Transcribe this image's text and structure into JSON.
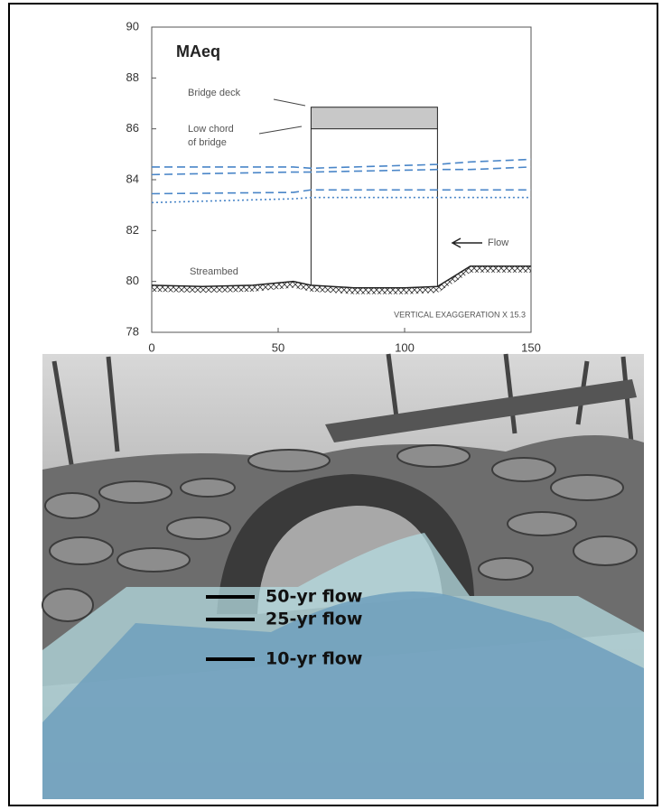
{
  "chart_data": {
    "type": "line",
    "title": "MAeq",
    "annotations": {
      "bridge_deck": "Bridge deck",
      "low_chord": [
        "Low chord",
        "of bridge"
      ],
      "flow": "Flow",
      "streambed": "Streambed",
      "exaggeration": "VERTICAL EXAGGERATION X 15.3"
    },
    "xlim": [
      0,
      150
    ],
    "xticks": [
      0,
      50,
      100,
      150
    ],
    "ylim": [
      78,
      90
    ],
    "yticks": [
      78,
      80,
      82,
      84,
      86,
      88,
      90
    ],
    "bridge": {
      "x": [
        63,
        113
      ],
      "low_chord": 86,
      "deck_top": 86.85,
      "color": "#c8c8c8"
    },
    "streambed": {
      "color": "#222",
      "x": [
        0,
        20,
        40,
        56,
        63,
        80,
        100,
        113,
        126,
        150
      ],
      "values": [
        79.85,
        79.8,
        79.85,
        80.0,
        79.85,
        79.75,
        79.75,
        79.8,
        80.6,
        80.6
      ]
    },
    "series": [
      {
        "color": "#4a86c8",
        "style": "dashed",
        "x": [
          0,
          56,
          63,
          113,
          126,
          150
        ],
        "values": [
          84.5,
          84.5,
          84.45,
          84.6,
          84.7,
          84.8
        ]
      },
      {
        "color": "#4a86c8",
        "style": "dashed",
        "x": [
          0,
          56,
          63,
          113,
          126,
          150
        ],
        "values": [
          84.2,
          84.3,
          84.3,
          84.4,
          84.4,
          84.5
        ]
      },
      {
        "color": "#4a86c8",
        "style": "dashed",
        "x": [
          0,
          56,
          63,
          113,
          126,
          150
        ],
        "values": [
          83.45,
          83.5,
          83.6,
          83.6,
          83.6,
          83.6
        ]
      },
      {
        "color": "#4a86c8",
        "style": "dotted",
        "x": [
          0,
          56,
          63,
          113,
          126,
          150
        ],
        "values": [
          83.1,
          83.25,
          83.3,
          83.3,
          83.3,
          83.3
        ]
      }
    ]
  },
  "photo": {
    "labels": [
      "50-yr flow",
      "25-yr flow",
      "10-yr flow"
    ]
  }
}
